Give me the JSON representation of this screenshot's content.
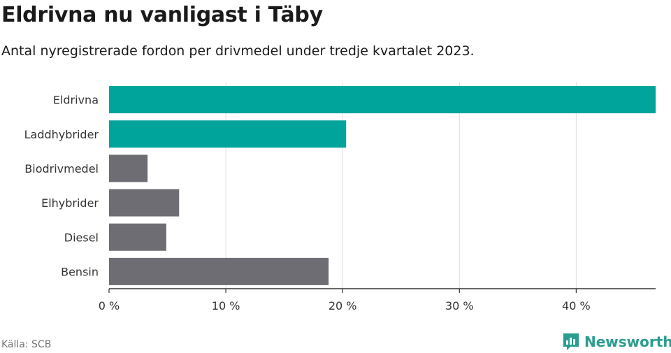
{
  "header": {
    "title": "Eldrivna nu vanligast i Täby",
    "subtitle": "Antal nyregistrerade fordon per drivmedel under tredje kvartalet 2023."
  },
  "footer": {
    "source": "Källa: SCB",
    "brand": "Newsworthy"
  },
  "colors": {
    "highlight": "#00a49a",
    "default": "#6f6d74",
    "grid": "#dddddd",
    "axis": "#333333",
    "brand": "#2a9d8f"
  },
  "chart_data": {
    "type": "bar",
    "orientation": "horizontal",
    "categories": [
      "Eldrivna",
      "Laddhybrider",
      "Biodrivmedel",
      "Elhybrider",
      "Diesel",
      "Bensin"
    ],
    "values": [
      46.8,
      20.3,
      3.3,
      6.0,
      4.9,
      18.8
    ],
    "highlighted": [
      true,
      true,
      false,
      false,
      false,
      false
    ],
    "xlim": [
      0,
      46.8
    ],
    "xticks": [
      0,
      10,
      20,
      30,
      40
    ],
    "xtick_labels": [
      "0 %",
      "10 %",
      "20 %",
      "30 %",
      "40 %"
    ],
    "grid": true,
    "title": "Eldrivna nu vanligast i Täby",
    "xlabel": "",
    "ylabel": ""
  }
}
